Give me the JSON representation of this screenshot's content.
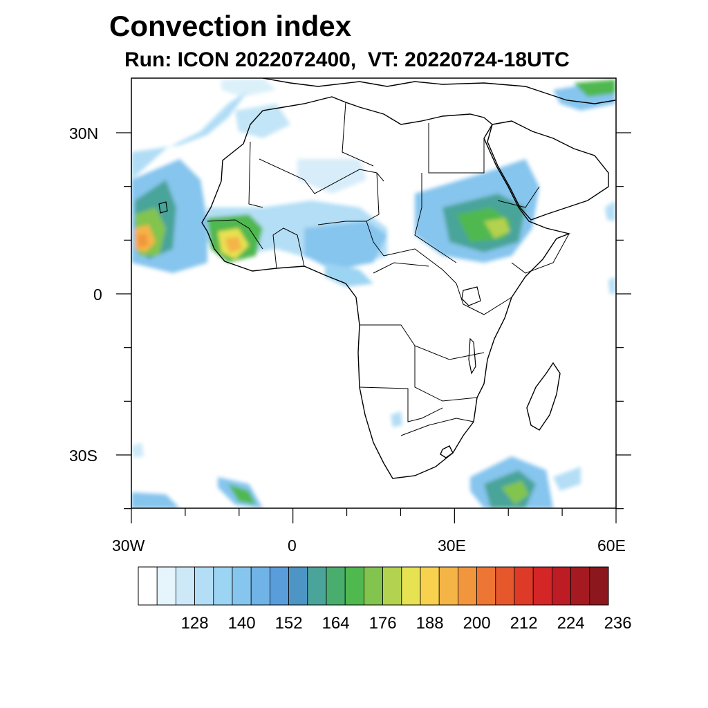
{
  "header": {
    "title": "Convection index",
    "subtitle": "Run: ICON 2022072400,  VT: 20220724-18UTC"
  },
  "map": {
    "region": "Africa",
    "lat_labels": [
      "30N",
      "0",
      "30S"
    ],
    "lon_labels": [
      "30W",
      "0",
      "30E",
      "60E"
    ]
  },
  "colorbar": {
    "tick_labels": [
      "128",
      "140",
      "152",
      "164",
      "176",
      "188",
      "200",
      "212",
      "224",
      "236"
    ],
    "colors": [
      "#ffffff",
      "#e6f4fc",
      "#cde9f8",
      "#b3def5",
      "#9cd4f3",
      "#86c5ee",
      "#70b3e6",
      "#5a9ddb",
      "#4c95c4",
      "#4aa49a",
      "#49ad6e",
      "#4fb84f",
      "#82c44e",
      "#b3d24f",
      "#e6e251",
      "#f8d14e",
      "#f5b446",
      "#f2963e",
      "#ee7634",
      "#e6572c",
      "#de3a28",
      "#d42626",
      "#bd1c24",
      "#a51a21",
      "#8c171d"
    ]
  }
}
